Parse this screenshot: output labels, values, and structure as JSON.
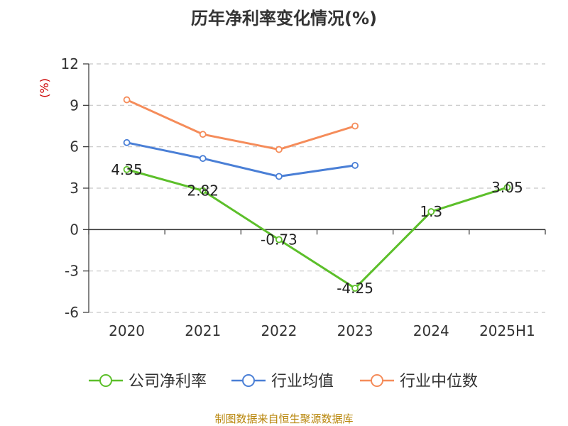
{
  "chart_data": {
    "type": "line",
    "title": "历年净利率变化情况(%)",
    "ylabel": "(%)",
    "xlabel": "",
    "categories": [
      "2020",
      "2021",
      "2022",
      "2023",
      "2024",
      "2025H1"
    ],
    "ylim": [
      -6,
      12
    ],
    "yticks": [
      "12",
      "9",
      "6",
      "3",
      "0",
      "-3",
      "-6"
    ],
    "ytick_values": [
      12,
      9,
      6,
      3,
      0,
      -3,
      -6
    ],
    "grid": true,
    "legend_position": "bottom",
    "series": [
      {
        "name": "公司净利率",
        "color": "#5cbf2a",
        "values": [
          4.35,
          2.82,
          -0.73,
          -4.25,
          1.3,
          3.05
        ],
        "labels": [
          "4.35",
          "2.82",
          "-0.73",
          "-4.25",
          "1.3",
          "3.05"
        ]
      },
      {
        "name": "行业均值",
        "color": "#4a7fd6",
        "values": [
          6.3,
          5.15,
          3.85,
          4.65,
          null,
          null
        ]
      },
      {
        "name": "行业中位数",
        "color": "#f58c5a",
        "values": [
          9.4,
          6.9,
          5.8,
          7.5,
          null,
          null
        ]
      }
    ]
  },
  "source": "制图数据来自恒生聚源数据库"
}
